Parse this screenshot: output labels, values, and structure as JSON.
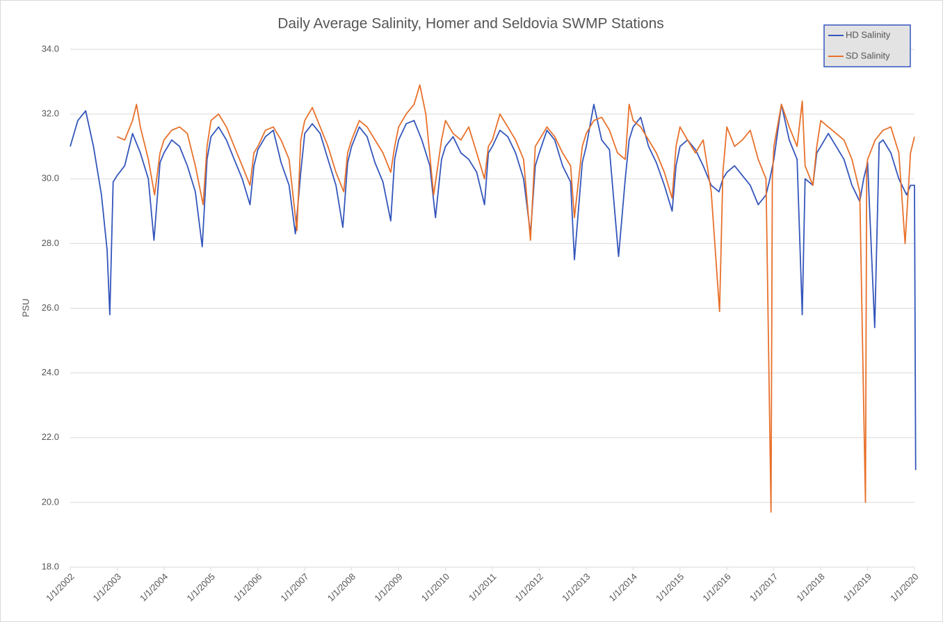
{
  "chart_data": {
    "type": "line",
    "title": "Daily Average Salinity, Homer and Seldovia SWMP Stations",
    "y_label": "PSU",
    "ylim": [
      18,
      34
    ],
    "yticks": [
      {
        "value": 18,
        "label": "18.0"
      },
      {
        "value": 20,
        "label": "20.0"
      },
      {
        "value": 22,
        "label": "22.0"
      },
      {
        "value": 24,
        "label": "24.0"
      },
      {
        "value": 26,
        "label": "26.0"
      },
      {
        "value": 28,
        "label": "28.0"
      },
      {
        "value": 30,
        "label": "30.0"
      },
      {
        "value": 32,
        "label": "32.0"
      },
      {
        "value": 34,
        "label": "34.0"
      }
    ],
    "xlim": [
      "1/1/2002",
      "1/1/2020"
    ],
    "xticks": [
      "1/1/2002",
      "1/1/2003",
      "1/1/2004",
      "1/1/2005",
      "1/1/2006",
      "1/1/2007",
      "1/1/2008",
      "1/1/2009",
      "1/1/2010",
      "1/1/2011",
      "1/1/2012",
      "1/1/2013",
      "1/1/2014",
      "1/1/2015",
      "1/1/2016",
      "1/1/2017",
      "1/1/2018",
      "1/1/2019",
      "1/1/2020"
    ],
    "grid": true,
    "legend": "top-right",
    "series": [
      {
        "name": "HD Salinity",
        "color": "#3355bb",
        "x": [
          "1/1/2002",
          "3/1/2002",
          "5/1/2002",
          "7/1/2002",
          "9/1/2002",
          "10/15/2002",
          "11/5/2002",
          "12/1/2002",
          "1/1/2003",
          "3/1/2003",
          "5/1/2003",
          "7/1/2003",
          "9/1/2003",
          "10/15/2003",
          "12/1/2003",
          "1/1/2004",
          "3/1/2004",
          "5/1/2004",
          "7/1/2004",
          "9/1/2004",
          "10/25/2004",
          "12/1/2004",
          "1/1/2005",
          "3/1/2005",
          "5/1/2005",
          "7/1/2005",
          "9/1/2005",
          "11/1/2005",
          "12/1/2005",
          "1/1/2006",
          "3/1/2006",
          "5/1/2006",
          "7/1/2006",
          "9/1/2006",
          "10/20/2006",
          "12/1/2006",
          "1/1/2007",
          "3/1/2007",
          "5/1/2007",
          "7/1/2007",
          "9/1/2007",
          "10/25/2007",
          "12/1/2007",
          "1/1/2008",
          "3/1/2008",
          "5/1/2008",
          "7/1/2008",
          "9/1/2008",
          "11/1/2008",
          "12/1/2008",
          "1/1/2009",
          "3/1/2009",
          "5/1/2009",
          "7/1/2009",
          "9/1/2009",
          "10/15/2009",
          "12/1/2009",
          "1/1/2010",
          "3/1/2010",
          "5/1/2010",
          "7/1/2010",
          "9/1/2010",
          "11/1/2010",
          "12/1/2010",
          "1/1/2011",
          "3/1/2011",
          "5/1/2011",
          "7/1/2011",
          "9/1/2011",
          "10/25/2011",
          "12/1/2011",
          "1/1/2012",
          "3/1/2012",
          "5/1/2012",
          "7/1/2012",
          "9/1/2012",
          "10/1/2012",
          "12/1/2012",
          "1/1/2013",
          "3/1/2013",
          "5/1/2013",
          "7/1/2013",
          "9/10/2013",
          "11/1/2013",
          "12/1/2013",
          "1/1/2014",
          "3/1/2014",
          "5/1/2014",
          "7/1/2014",
          "9/1/2014",
          "11/1/2014",
          "12/1/2014",
          "1/1/2015",
          "3/1/2015",
          "5/1/2015",
          "7/1/2015",
          "9/1/2015",
          "11/1/2015",
          "12/1/2015",
          "1/1/2016",
          "3/1/2016",
          "5/1/2016",
          "7/1/2016",
          "9/1/2016",
          "11/1/2016",
          "12/1/2016",
          "1/1/2017",
          "3/1/2017",
          "5/1/2017",
          "7/1/2017",
          "8/10/2017",
          "9/1/2017",
          "11/1/2017",
          "12/1/2017",
          "1/1/2018",
          "3/1/2018",
          "5/1/2018",
          "7/1/2018",
          "9/1/2018",
          "11/1/2018",
          "12/1/2018",
          "1/1/2019",
          "2/25/2019",
          "4/1/2019",
          "5/1/2019",
          "7/1/2019",
          "9/1/2019",
          "11/1/2019",
          "12/1/2019",
          "1/1/2020",
          "1/10/2020"
        ],
        "values": [
          31.0,
          31.8,
          32.1,
          31.0,
          29.5,
          27.8,
          25.8,
          29.9,
          30.1,
          30.4,
          31.4,
          30.8,
          30.0,
          28.1,
          30.5,
          30.8,
          31.2,
          31.0,
          30.4,
          29.6,
          27.9,
          30.6,
          31.3,
          31.6,
          31.2,
          30.6,
          30.0,
          29.2,
          30.4,
          30.9,
          31.3,
          31.5,
          30.5,
          29.8,
          28.3,
          30.2,
          31.4,
          31.7,
          31.4,
          30.6,
          29.8,
          28.5,
          30.5,
          31.0,
          31.6,
          31.3,
          30.5,
          29.9,
          28.7,
          30.6,
          31.2,
          31.7,
          31.8,
          31.2,
          30.4,
          28.8,
          30.6,
          31.0,
          31.3,
          30.8,
          30.6,
          30.2,
          29.2,
          30.8,
          31.0,
          31.5,
          31.3,
          30.8,
          30.0,
          28.3,
          30.4,
          30.8,
          31.5,
          31.2,
          30.4,
          29.9,
          27.5,
          30.5,
          31.0,
          32.3,
          31.2,
          30.9,
          27.6,
          30.0,
          31.2,
          31.6,
          31.9,
          31.0,
          30.5,
          29.8,
          29.0,
          30.4,
          31.0,
          31.2,
          30.9,
          30.4,
          29.8,
          29.6,
          30.0,
          30.2,
          30.4,
          30.1,
          29.8,
          29.2,
          29.5,
          30.0,
          30.6,
          32.3,
          31.2,
          30.6,
          25.8,
          30.0,
          29.8,
          30.8,
          31.0,
          31.4,
          31.0,
          30.6,
          29.8,
          29.3,
          30.0,
          30.5,
          25.4,
          31.1,
          31.2,
          30.8,
          30.0,
          29.5,
          29.8,
          29.8,
          21.0
        ]
      },
      {
        "name": "SD Salinity",
        "color": "#e8702a",
        "x": [
          "1/1/2003",
          "3/1/2003",
          "5/1/2003",
          "6/1/2003",
          "7/1/2003",
          "9/1/2003",
          "10/20/2003",
          "12/1/2003",
          "1/1/2004",
          "3/1/2004",
          "5/1/2004",
          "7/1/2004",
          "9/1/2004",
          "11/1/2004",
          "12/1/2004",
          "1/1/2005",
          "3/1/2005",
          "5/1/2005",
          "7/1/2005",
          "9/1/2005",
          "11/1/2005",
          "12/1/2005",
          "1/1/2006",
          "3/1/2006",
          "5/1/2006",
          "7/1/2006",
          "9/1/2006",
          "11/1/2006",
          "12/1/2006",
          "1/1/2007",
          "3/1/2007",
          "5/1/2007",
          "7/1/2007",
          "9/1/2007",
          "11/1/2007",
          "12/1/2007",
          "1/1/2008",
          "3/1/2008",
          "5/1/2008",
          "7/1/2008",
          "9/1/2008",
          "11/1/2008",
          "12/1/2008",
          "1/1/2009",
          "3/1/2009",
          "5/1/2009",
          "6/15/2009",
          "8/1/2009",
          "10/1/2009",
          "12/1/2009",
          "1/1/2010",
          "3/1/2010",
          "5/1/2010",
          "7/1/2010",
          "9/1/2010",
          "11/1/2010",
          "12/1/2010",
          "1/1/2011",
          "3/1/2011",
          "5/1/2011",
          "7/1/2011",
          "9/1/2011",
          "10/25/2011",
          "12/1/2011",
          "1/1/2012",
          "3/1/2012",
          "5/1/2012",
          "7/1/2012",
          "9/1/2012",
          "10/1/2012",
          "12/1/2012",
          "1/1/2013",
          "3/1/2013",
          "5/1/2013",
          "7/1/2013",
          "9/1/2013",
          "11/1/2013",
          "12/1/2013",
          "1/1/2014",
          "3/1/2014",
          "5/1/2014",
          "7/1/2014",
          "9/1/2014",
          "11/1/2014",
          "12/1/2014",
          "1/1/2015",
          "3/1/2015",
          "5/1/2015",
          "7/1/2015",
          "9/1/2015",
          "11/5/2015",
          "12/1/2015",
          "1/1/2016",
          "3/1/2016",
          "5/1/2016",
          "7/1/2016",
          "9/1/2016",
          "11/1/2016",
          "12/10/2016",
          "12/20/2016",
          "1/1/2017",
          "3/1/2017",
          "5/1/2017",
          "7/1/2017",
          "8/10/2017",
          "9/1/2017",
          "11/1/2017",
          "12/1/2017",
          "1/1/2018",
          "3/1/2018",
          "5/1/2018",
          "7/1/2018",
          "9/1/2018",
          "11/1/2018",
          "12/15/2018",
          "12/25/2018",
          "1/1/2019",
          "3/1/2019",
          "5/1/2019",
          "7/1/2019",
          "9/1/2019",
          "10/20/2019",
          "12/1/2019",
          "1/1/2020"
        ],
        "values": [
          31.3,
          31.2,
          31.8,
          32.3,
          31.6,
          30.6,
          29.5,
          30.8,
          31.2,
          31.5,
          31.6,
          31.4,
          30.4,
          29.2,
          31.0,
          31.8,
          32.0,
          31.6,
          31.0,
          30.4,
          29.8,
          30.8,
          31.0,
          31.5,
          31.6,
          31.2,
          30.6,
          28.4,
          31.2,
          31.8,
          32.2,
          31.6,
          31.0,
          30.2,
          29.6,
          30.8,
          31.2,
          31.8,
          31.6,
          31.2,
          30.8,
          30.2,
          31.0,
          31.6,
          32.0,
          32.3,
          32.9,
          32.0,
          29.5,
          31.2,
          31.8,
          31.4,
          31.2,
          31.6,
          30.8,
          30.0,
          31.0,
          31.2,
          32.0,
          31.6,
          31.2,
          30.6,
          28.1,
          31.0,
          31.2,
          31.6,
          31.3,
          30.8,
          30.4,
          28.8,
          31.0,
          31.4,
          31.8,
          31.9,
          31.5,
          30.8,
          30.6,
          32.3,
          31.8,
          31.6,
          31.2,
          30.8,
          30.2,
          29.4,
          31.0,
          31.6,
          31.2,
          30.8,
          31.2,
          29.6,
          25.9,
          30.2,
          31.6,
          31.0,
          31.2,
          31.5,
          30.6,
          30.0,
          19.7,
          30.0,
          31.0,
          32.3,
          31.6,
          31.0,
          32.4,
          30.4,
          29.8,
          31.0,
          31.8,
          31.6,
          31.4,
          31.2,
          30.6,
          29.6,
          20.0,
          30.4,
          30.6,
          31.2,
          31.5,
          31.6,
          30.8,
          28.0,
          30.8,
          31.3
        ]
      }
    ]
  }
}
